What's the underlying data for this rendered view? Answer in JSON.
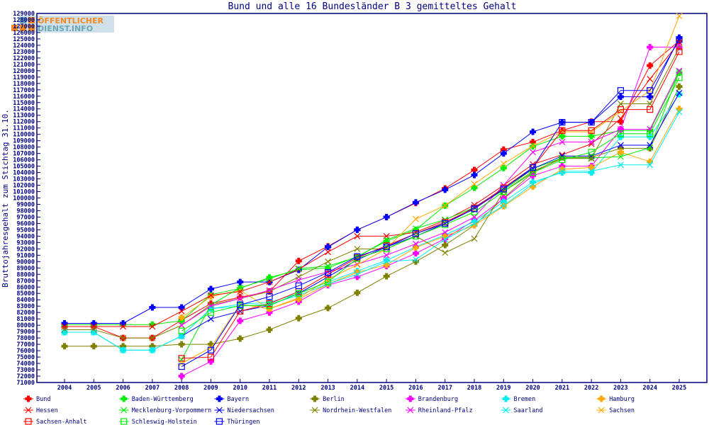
{
  "chart_data": {
    "type": "line",
    "title": "Bund und alle 16 Bundesländer B 3 gemitteltes Gehalt",
    "xlabel": "",
    "ylabel": "Bruttojahresgehalt zum Stichtag 31.10.",
    "ylim": [
      71000,
      129000
    ],
    "ytick_step": 1000,
    "grid": false,
    "legend_position": "bottom",
    "logo_text": [
      "ÖFFENTLICHER",
      "DIENST.INFO"
    ],
    "x": [
      2004,
      2005,
      2006,
      2007,
      2008,
      2009,
      2010,
      2011,
      2012,
      2013,
      2014,
      2015,
      2016,
      2017,
      2018,
      2019,
      2020,
      2021,
      2022,
      2023,
      2024,
      2025
    ],
    "series": [
      {
        "name": "Bund",
        "color": "#ff0000",
        "marker": "filled",
        "values": [
          79800,
          79800,
          78000,
          78000,
          80800,
          83400,
          84400,
          85300,
          90100,
          92400,
          95000,
          97000,
          99200,
          101500,
          104400,
          107600,
          108800,
          110600,
          112000,
          112000,
          120800,
          124700
        ]
      },
      {
        "name": "Baden-Württemberg",
        "color": "#00ee00",
        "marker": "filled",
        "values": [
          80100,
          80100,
          80100,
          80100,
          80700,
          84800,
          85800,
          87500,
          88700,
          89000,
          90800,
          93200,
          95000,
          98800,
          101600,
          104700,
          108100,
          109700,
          109700,
          110600,
          110600,
          119700
        ]
      },
      {
        "name": "Bayern",
        "color": "#0000ff",
        "marker": "filled",
        "values": [
          80300,
          80300,
          80300,
          82800,
          82800,
          85700,
          86800,
          86800,
          88700,
          92300,
          95000,
          97000,
          99300,
          101300,
          103600,
          107000,
          110400,
          111900,
          111900,
          115900,
          115900,
          125200
        ]
      },
      {
        "name": "Berlin",
        "color": "#808000",
        "marker": "filled",
        "values": [
          76700,
          76700,
          76700,
          76700,
          77000,
          77000,
          77900,
          79300,
          81100,
          82700,
          85100,
          87700,
          90000,
          92600,
          95700,
          100000,
          104000,
          106400,
          106400,
          107800,
          107800,
          117500
        ]
      },
      {
        "name": "Brandenburg",
        "color": "#ff00ff",
        "marker": "filled",
        "values": [
          null,
          null,
          null,
          null,
          72000,
          74300,
          80700,
          82000,
          83700,
          86300,
          87600,
          89300,
          91300,
          93600,
          96500,
          99900,
          103500,
          105000,
          105000,
          110800,
          123700,
          123700
        ]
      },
      {
        "name": "Bremen",
        "color": "#00eeee",
        "marker": "filled",
        "values": [
          78900,
          78900,
          76100,
          76100,
          78300,
          82600,
          83300,
          83600,
          85000,
          86800,
          88500,
          90200,
          92300,
          94200,
          96300,
          99400,
          102500,
          104000,
          104000,
          109600,
          109600,
          116300
        ]
      },
      {
        "name": "Hamburg",
        "color": "#ffaa00",
        "marker": "filled",
        "values": [
          null,
          null,
          null,
          null,
          81200,
          84500,
          85500,
          82600,
          84100,
          86500,
          88300,
          89500,
          92200,
          94000,
          95700,
          98700,
          101800,
          104500,
          104800,
          107200,
          105700,
          114000
        ]
      },
      {
        "name": "Hessen",
        "color": "#ff0000",
        "marker": "x",
        "values": [
          79800,
          79800,
          79800,
          79800,
          82200,
          84700,
          85300,
          86800,
          88800,
          91500,
          94000,
          94000,
          94600,
          96500,
          98900,
          102000,
          105300,
          106800,
          108500,
          112500,
          118700,
          124500
        ]
      },
      {
        "name": "Mecklenburg-Vorpommern",
        "color": "#00ee00",
        "marker": "x",
        "values": [
          null,
          null,
          null,
          null,
          74600,
          83200,
          85900,
          87300,
          88900,
          89300,
          90700,
          93400,
          95200,
          96600,
          98500,
          101200,
          104600,
          106300,
          106300,
          106500,
          107900,
          119800
        ]
      },
      {
        "name": "Niedersachsen",
        "color": "#0000ff",
        "marker": "x",
        "values": [
          null,
          null,
          null,
          null,
          78300,
          81000,
          82200,
          83100,
          85000,
          87600,
          90300,
          92300,
          94000,
          96000,
          98500,
          101500,
          104600,
          106600,
          106600,
          108300,
          108300,
          116500
        ]
      },
      {
        "name": "Nordrhein-Westfalen",
        "color": "#808000",
        "marker": "x",
        "values": [
          79300,
          79300,
          78000,
          78000,
          80000,
          83200,
          84200,
          85300,
          87600,
          90000,
          92000,
          92000,
          94000,
          91400,
          93600,
          101000,
          104200,
          106200,
          106200,
          114800,
          114800,
          123600
        ]
      },
      {
        "name": "Rheinland-Pfalz",
        "color": "#ff00ff",
        "marker": "x",
        "values": [
          null,
          null,
          null,
          null,
          80000,
          83000,
          84200,
          85500,
          87100,
          88400,
          89600,
          91000,
          92800,
          94600,
          97000,
          102000,
          107200,
          108800,
          108800,
          110800,
          110800,
          120000
        ]
      },
      {
        "name": "Saarland",
        "color": "#00eeee",
        "marker": "x",
        "values": [
          78900,
          78900,
          76100,
          76100,
          78300,
          82600,
          83000,
          83300,
          84700,
          86500,
          88000,
          90000,
          90300,
          93500,
          96000,
          98800,
          102200,
          104200,
          104200,
          105200,
          105200,
          113500
        ]
      },
      {
        "name": "Sachsen",
        "color": "#ffaa00",
        "marker": "x",
        "values": [
          null,
          null,
          null,
          null,
          74000,
          76500,
          83300,
          82600,
          84300,
          87200,
          89500,
          92000,
          96700,
          98800,
          102200,
          105400,
          108200,
          110400,
          110400,
          113600,
          116900,
          128600
        ]
      },
      {
        "name": "Sachsen-Anhalt",
        "color": "#ff0000",
        "marker": "square",
        "values": [
          null,
          null,
          null,
          null,
          74800,
          75000,
          82200,
          83400,
          85300,
          88000,
          90600,
          92500,
          94400,
          96200,
          98400,
          101600,
          104800,
          110600,
          110600,
          113900,
          113900,
          123000
        ]
      },
      {
        "name": "Schleswig-Holstein",
        "color": "#00ee00",
        "marker": "square",
        "values": [
          null,
          null,
          null,
          null,
          79100,
          82000,
          83100,
          83100,
          85000,
          86800,
          90500,
          92000,
          94000,
          95800,
          97800,
          101000,
          104000,
          106000,
          107200,
          110100,
          110100,
          118900
        ]
      },
      {
        "name": "Thüringen",
        "color": "#0000ff",
        "marker": "square",
        "values": [
          null,
          null,
          null,
          null,
          73500,
          76100,
          83200,
          84500,
          86200,
          88300,
          90800,
          92300,
          94400,
          96000,
          98300,
          101400,
          104800,
          111900,
          111900,
          116900,
          116900,
          124900
        ]
      }
    ]
  }
}
